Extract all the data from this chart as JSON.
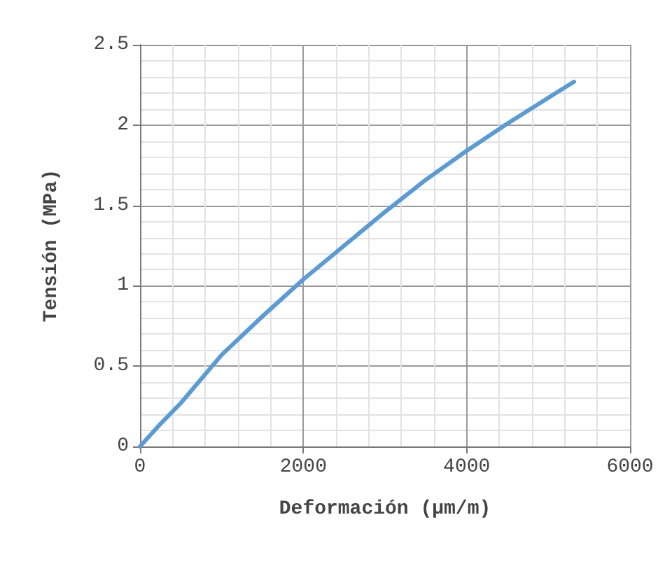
{
  "chart_data": {
    "type": "line",
    "xlabel": "Deformación (µm/m)",
    "ylabel": "Tensión (MPa)",
    "x": [
      0,
      250,
      500,
      1000,
      1500,
      2000,
      2500,
      3000,
      3500,
      4000,
      4500,
      5000,
      5315
    ],
    "series": [
      {
        "color": "#5b9bd5",
        "values": [
          0,
          0.14,
          0.27,
          0.57,
          0.81,
          1.04,
          1.25,
          1.46,
          1.66,
          1.84,
          2.01,
          2.17,
          2.27
        ]
      }
    ],
    "xlim": [
      0,
      6000
    ],
    "xticks": [
      0,
      2000,
      4000,
      6000
    ],
    "ylim": [
      0,
      2.5
    ],
    "yticks": [
      0,
      0.5,
      1,
      1.5,
      2,
      2.5
    ],
    "grid": true,
    "marker": "none",
    "line_style": "solid"
  }
}
